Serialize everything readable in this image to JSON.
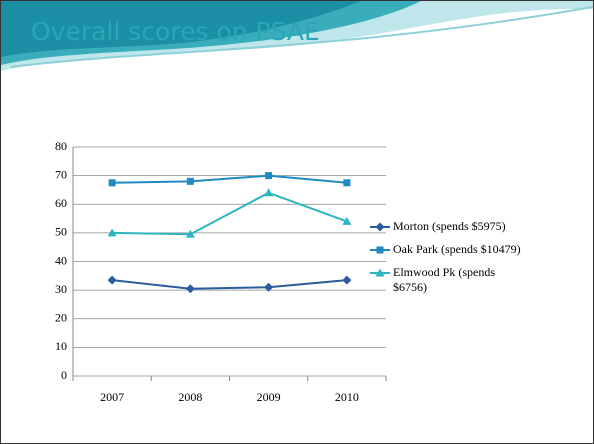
{
  "chart_data": {
    "type": "line",
    "title": "Overall scores on PSAE",
    "categories": [
      "2007",
      "2008",
      "2009",
      "2010"
    ],
    "series": [
      {
        "name": "Morton (spends $5975)",
        "color": "#2b5c9e",
        "marker": "diamond",
        "values": [
          33.5,
          30.5,
          31,
          33.5
        ]
      },
      {
        "name": "Oak Park (spends $10479)",
        "color": "#1f8ac0",
        "marker": "square",
        "values": [
          67.5,
          68,
          70,
          67.5
        ]
      },
      {
        "name": "Elmwood Pk (spends $6756)",
        "color": "#2cb5c0",
        "marker": "triangle",
        "values": [
          50,
          49.5,
          64,
          54
        ]
      }
    ],
    "ylim": [
      0,
      80
    ],
    "yticks": [
      0,
      10,
      20,
      30,
      40,
      50,
      60,
      70,
      80
    ],
    "grid": true,
    "legend": "right"
  }
}
